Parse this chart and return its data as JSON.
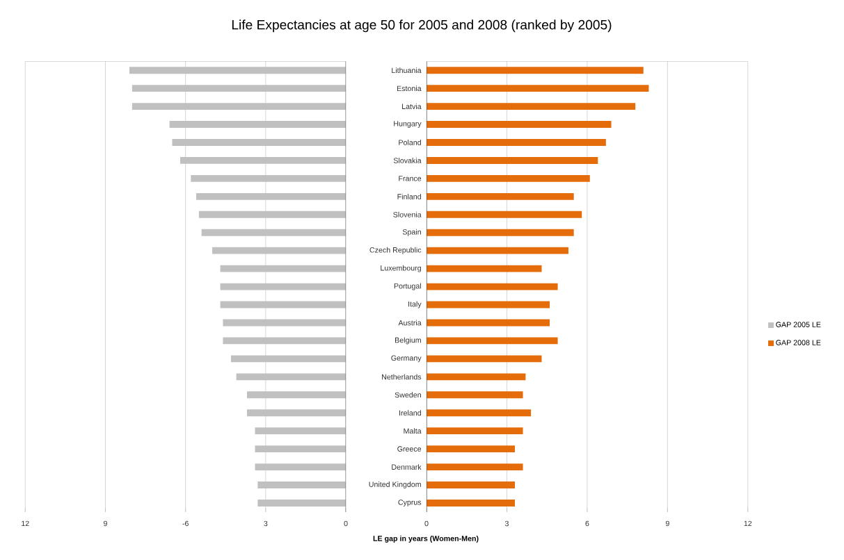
{
  "chart_data": [
    {
      "type": "bar",
      "orientation": "horizontal",
      "title": "Life Expectancies at age 50 for 2005 and 2008 (ranked by 2005)",
      "xlabel": "LE gap in years (Women-Men)",
      "series": [
        {
          "name": "GAP 2005 LE",
          "color": "#c0c0c0",
          "values": [
            -8.1,
            -8.0,
            -8.0,
            -6.6,
            -6.5,
            -6.2,
            -5.8,
            -5.6,
            -5.5,
            -5.4,
            -5.0,
            -4.7,
            -4.7,
            -4.7,
            -4.6,
            -4.6,
            -4.3,
            -4.1,
            -3.7,
            -3.7,
            -3.4,
            -3.4,
            -3.4,
            -3.3,
            -3.3
          ]
        }
      ],
      "xlim": [
        -12,
        0
      ],
      "xticks": [
        {
          "value": -12,
          "label": "12"
        },
        {
          "value": -9,
          "label": "9"
        },
        -6,
        {
          "value": -3,
          "label": "3"
        },
        0
      ],
      "grid": "x",
      "legend": "right",
      "tick_labels": "x"
    },
    {
      "type": "bar",
      "orientation": "horizontal",
      "categories": [
        "Lithuania",
        "Estonia",
        "Latvia",
        "Hungary",
        "Poland",
        "Slovakia",
        "France",
        "Finland",
        "Slovenia",
        "Spain",
        "Czech Republic",
        "Luxembourg",
        "Portugal",
        "Italy",
        "Austria",
        "Belgium",
        "Germany",
        "Netherlands",
        "Sweden",
        "Ireland",
        "Malta",
        "Greece",
        "Denmark",
        "United Kingdom",
        "Cyprus"
      ],
      "series": [
        {
          "name": "GAP 2008 LE",
          "color": "#e46c0a",
          "values": [
            8.1,
            8.3,
            7.8,
            6.9,
            6.7,
            6.4,
            6.1,
            5.5,
            5.8,
            5.5,
            5.3,
            4.3,
            4.9,
            4.6,
            4.6,
            4.9,
            4.3,
            3.7,
            3.6,
            3.9,
            3.6,
            3.3,
            3.6,
            3.3,
            3.3
          ]
        }
      ],
      "xlim": [
        0,
        12
      ],
      "xticks": [
        0,
        3,
        6,
        9,
        12
      ],
      "grid": "x",
      "legend": "right"
    }
  ]
}
